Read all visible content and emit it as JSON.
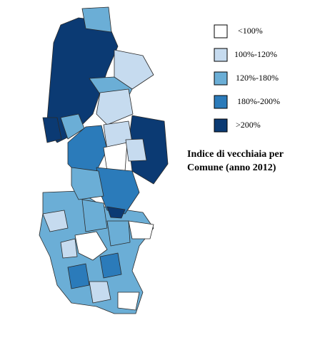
{
  "legend": {
    "items": [
      {
        "label": "<100%",
        "color": "#ffffff"
      },
      {
        "label": "100%-120%",
        "color": "#c6dbef"
      },
      {
        "label": "120%-180%",
        "color": "#6baed6"
      },
      {
        "label": "180%-200%",
        "color": "#2b7bba"
      },
      {
        "label": ">200%",
        "color": "#0b3a73"
      }
    ]
  },
  "title": "Indice di vecchiaia per Comune (anno 2012)"
}
